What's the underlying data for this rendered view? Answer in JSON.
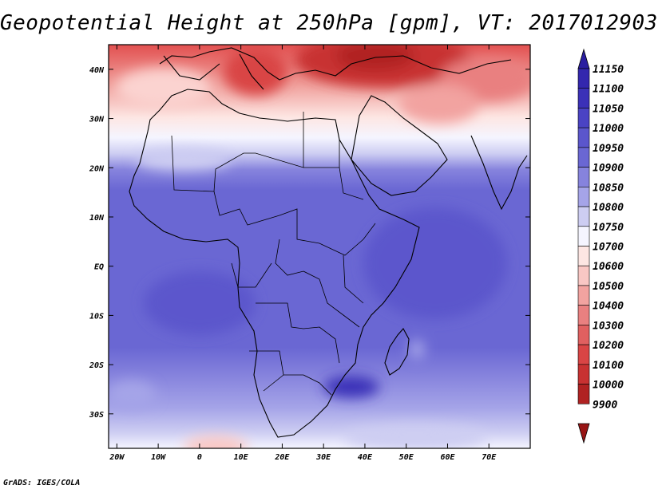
{
  "title": "Geopotential Height at 250hPa [gpm], VT: 2017012903",
  "credit": "GrADS: IGES/COLA",
  "map": {
    "lon_range": [
      -22,
      80
    ],
    "lat_range": [
      -37,
      45
    ],
    "x_ticks": [
      "20W",
      "10W",
      "0",
      "10E",
      "20E",
      "30E",
      "40E",
      "50E",
      "60E",
      "70E"
    ],
    "x_tick_values": [
      -20,
      -10,
      0,
      10,
      20,
      30,
      40,
      50,
      60,
      70
    ],
    "y_ticks": [
      "40N",
      "30N",
      "20N",
      "10N",
      "EQ",
      "10S",
      "20S",
      "30S"
    ],
    "y_tick_values": [
      40,
      30,
      20,
      10,
      0,
      -10,
      -20,
      -30
    ]
  },
  "chart_data": {
    "type": "heatmap",
    "title": "Geopotential Height at 250hPa [gpm], VT: 2017012903",
    "colorbar": {
      "labels": [
        "11150",
        "11100",
        "11050",
        "11000",
        "10950",
        "10900",
        "10850",
        "10800",
        "10750",
        "10700",
        "10600",
        "10500",
        "10400",
        "10300",
        "10200",
        "10100",
        "10000",
        "9900"
      ],
      "bins": [
        {
          "color": "#2a1ea0"
        },
        {
          "color": "#3327ae"
        },
        {
          "color": "#3b31b8"
        },
        {
          "color": "#4a43c4"
        },
        {
          "color": "#5b56cc"
        },
        {
          "color": "#6a67d3"
        },
        {
          "color": "#8683dd"
        },
        {
          "color": "#a5a4e8"
        },
        {
          "color": "#cdcdf2"
        },
        {
          "color": "#f5f5ff"
        },
        {
          "color": "#fde6e3"
        },
        {
          "color": "#f9c7c4"
        },
        {
          "color": "#f2a3a0"
        },
        {
          "color": "#e98080"
        },
        {
          "color": "#e06060"
        },
        {
          "color": "#d94545"
        },
        {
          "color": "#c83232"
        },
        {
          "color": "#b02222"
        },
        {
          "color": "#981515"
        }
      ]
    }
  }
}
